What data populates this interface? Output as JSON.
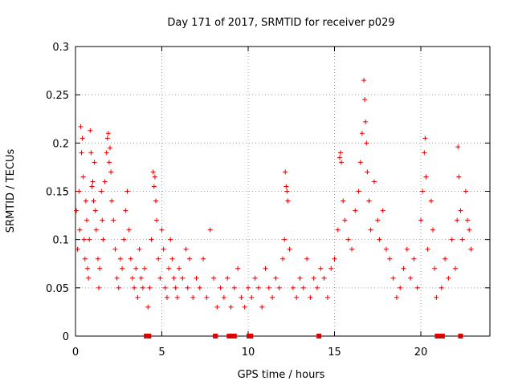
{
  "chart_data": {
    "type": "scatter",
    "title": "Day 171 of 2017, SRMTID for receiver p029",
    "xlabel": "GPS time / hours",
    "ylabel": "SRMTID / TECUs",
    "xlim": [
      0,
      24
    ],
    "ylim": [
      0,
      0.3
    ],
    "x_ticks": [
      0,
      5,
      10,
      15,
      20
    ],
    "x_tick_labels": [
      "0",
      "5",
      "10",
      "15",
      "20"
    ],
    "y_ticks": [
      0,
      0.05,
      0.1,
      0.15,
      0.2,
      0.25,
      0.3
    ],
    "y_tick_labels": [
      "0",
      "0.05",
      "0.1",
      "0.15",
      "0.2",
      "0.25",
      "0.3"
    ],
    "grid": true,
    "marker": "+",
    "series_color": "#e00000",
    "gap_markers_x": [
      4.1,
      4.25,
      8.1,
      8.9,
      9.05,
      9.2,
      10.05,
      10.15,
      14.1,
      20.95,
      21.05,
      21.15,
      21.25,
      22.3
    ],
    "series": [
      {
        "name": "SRMTID",
        "points": [
          [
            0.05,
            0.13
          ],
          [
            0.12,
            0.09
          ],
          [
            0.2,
            0.15
          ],
          [
            0.25,
            0.11
          ],
          [
            0.3,
            0.217
          ],
          [
            0.35,
            0.19
          ],
          [
            0.4,
            0.205
          ],
          [
            0.45,
            0.165
          ],
          [
            0.5,
            0.1
          ],
          [
            0.55,
            0.08
          ],
          [
            0.6,
            0.14
          ],
          [
            0.65,
            0.12
          ],
          [
            0.7,
            0.07
          ],
          [
            0.75,
            0.06
          ],
          [
            0.8,
            0.1
          ],
          [
            0.85,
            0.213
          ],
          [
            0.9,
            0.19
          ],
          [
            0.95,
            0.155
          ],
          [
            1.0,
            0.16
          ],
          [
            1.05,
            0.14
          ],
          [
            1.1,
            0.18
          ],
          [
            1.15,
            0.13
          ],
          [
            1.2,
            0.11
          ],
          [
            1.3,
            0.08
          ],
          [
            1.35,
            0.05
          ],
          [
            1.4,
            0.07
          ],
          [
            1.5,
            0.15
          ],
          [
            1.55,
            0.12
          ],
          [
            1.6,
            0.1
          ],
          [
            1.7,
            0.16
          ],
          [
            1.8,
            0.19
          ],
          [
            1.85,
            0.205
          ],
          [
            1.9,
            0.21
          ],
          [
            1.95,
            0.18
          ],
          [
            2.0,
            0.195
          ],
          [
            2.05,
            0.17
          ],
          [
            2.1,
            0.14
          ],
          [
            2.2,
            0.12
          ],
          [
            2.3,
            0.09
          ],
          [
            2.4,
            0.06
          ],
          [
            2.5,
            0.05
          ],
          [
            2.6,
            0.08
          ],
          [
            2.7,
            0.07
          ],
          [
            2.8,
            0.1
          ],
          [
            2.9,
            0.13
          ],
          [
            3.0,
            0.15
          ],
          [
            3.1,
            0.11
          ],
          [
            3.2,
            0.08
          ],
          [
            3.3,
            0.06
          ],
          [
            3.4,
            0.05
          ],
          [
            3.5,
            0.07
          ],
          [
            3.6,
            0.04
          ],
          [
            3.7,
            0.09
          ],
          [
            3.8,
            0.06
          ],
          [
            3.9,
            0.05
          ],
          [
            4.0,
            0.07
          ],
          [
            4.2,
            0.03
          ],
          [
            4.3,
            0.05
          ],
          [
            4.4,
            0.1
          ],
          [
            4.5,
            0.17
          ],
          [
            4.55,
            0.155
          ],
          [
            4.6,
            0.165
          ],
          [
            4.65,
            0.14
          ],
          [
            4.7,
            0.12
          ],
          [
            4.8,
            0.08
          ],
          [
            4.9,
            0.06
          ],
          [
            5.0,
            0.11
          ],
          [
            5.1,
            0.09
          ],
          [
            5.2,
            0.05
          ],
          [
            5.3,
            0.04
          ],
          [
            5.4,
            0.07
          ],
          [
            5.5,
            0.1
          ],
          [
            5.6,
            0.08
          ],
          [
            5.7,
            0.06
          ],
          [
            5.8,
            0.05
          ],
          [
            5.9,
            0.04
          ],
          [
            6.0,
            0.07
          ],
          [
            6.2,
            0.06
          ],
          [
            6.4,
            0.09
          ],
          [
            6.5,
            0.05
          ],
          [
            6.6,
            0.08
          ],
          [
            6.8,
            0.04
          ],
          [
            7.0,
            0.06
          ],
          [
            7.2,
            0.05
          ],
          [
            7.4,
            0.08
          ],
          [
            7.6,
            0.04
          ],
          [
            7.8,
            0.11
          ],
          [
            8.0,
            0.06
          ],
          [
            8.2,
            0.03
          ],
          [
            8.4,
            0.05
          ],
          [
            8.6,
            0.04
          ],
          [
            8.8,
            0.06
          ],
          [
            9.0,
            0.03
          ],
          [
            9.2,
            0.05
          ],
          [
            9.4,
            0.07
          ],
          [
            9.6,
            0.04
          ],
          [
            9.8,
            0.03
          ],
          [
            10.0,
            0.05
          ],
          [
            10.2,
            0.04
          ],
          [
            10.4,
            0.06
          ],
          [
            10.6,
            0.05
          ],
          [
            10.8,
            0.03
          ],
          [
            11.0,
            0.07
          ],
          [
            11.2,
            0.05
          ],
          [
            11.4,
            0.04
          ],
          [
            11.6,
            0.06
          ],
          [
            11.8,
            0.05
          ],
          [
            12.0,
            0.08
          ],
          [
            12.1,
            0.1
          ],
          [
            12.15,
            0.17
          ],
          [
            12.2,
            0.155
          ],
          [
            12.25,
            0.15
          ],
          [
            12.3,
            0.14
          ],
          [
            12.4,
            0.09
          ],
          [
            12.6,
            0.05
          ],
          [
            12.8,
            0.04
          ],
          [
            13.0,
            0.06
          ],
          [
            13.2,
            0.05
          ],
          [
            13.4,
            0.08
          ],
          [
            13.6,
            0.04
          ],
          [
            13.8,
            0.06
          ],
          [
            14.0,
            0.05
          ],
          [
            14.2,
            0.07
          ],
          [
            14.4,
            0.06
          ],
          [
            14.6,
            0.04
          ],
          [
            14.8,
            0.07
          ],
          [
            15.0,
            0.08
          ],
          [
            15.2,
            0.11
          ],
          [
            15.3,
            0.185
          ],
          [
            15.35,
            0.19
          ],
          [
            15.4,
            0.18
          ],
          [
            15.5,
            0.14
          ],
          [
            15.6,
            0.12
          ],
          [
            15.8,
            0.1
          ],
          [
            16.0,
            0.09
          ],
          [
            16.2,
            0.13
          ],
          [
            16.4,
            0.15
          ],
          [
            16.5,
            0.18
          ],
          [
            16.6,
            0.21
          ],
          [
            16.7,
            0.265
          ],
          [
            16.75,
            0.245
          ],
          [
            16.8,
            0.222
          ],
          [
            16.85,
            0.2
          ],
          [
            16.9,
            0.17
          ],
          [
            17.0,
            0.14
          ],
          [
            17.1,
            0.11
          ],
          [
            17.3,
            0.16
          ],
          [
            17.5,
            0.12
          ],
          [
            17.6,
            0.1
          ],
          [
            17.8,
            0.13
          ],
          [
            18.0,
            0.09
          ],
          [
            18.2,
            0.08
          ],
          [
            18.4,
            0.06
          ],
          [
            18.6,
            0.04
          ],
          [
            18.8,
            0.05
          ],
          [
            19.0,
            0.07
          ],
          [
            19.2,
            0.09
          ],
          [
            19.4,
            0.06
          ],
          [
            19.6,
            0.08
          ],
          [
            19.8,
            0.05
          ],
          [
            20.0,
            0.12
          ],
          [
            20.1,
            0.15
          ],
          [
            20.2,
            0.19
          ],
          [
            20.25,
            0.205
          ],
          [
            20.3,
            0.165
          ],
          [
            20.4,
            0.09
          ],
          [
            20.6,
            0.14
          ],
          [
            20.7,
            0.11
          ],
          [
            20.8,
            0.07
          ],
          [
            20.9,
            0.04
          ],
          [
            21.2,
            0.05
          ],
          [
            21.4,
            0.08
          ],
          [
            21.6,
            0.06
          ],
          [
            21.8,
            0.1
          ],
          [
            22.0,
            0.07
          ],
          [
            22.1,
            0.12
          ],
          [
            22.15,
            0.196
          ],
          [
            22.2,
            0.165
          ],
          [
            22.3,
            0.13
          ],
          [
            22.4,
            0.1
          ],
          [
            22.6,
            0.15
          ],
          [
            22.7,
            0.12
          ],
          [
            22.8,
            0.11
          ],
          [
            22.9,
            0.09
          ]
        ]
      }
    ]
  }
}
